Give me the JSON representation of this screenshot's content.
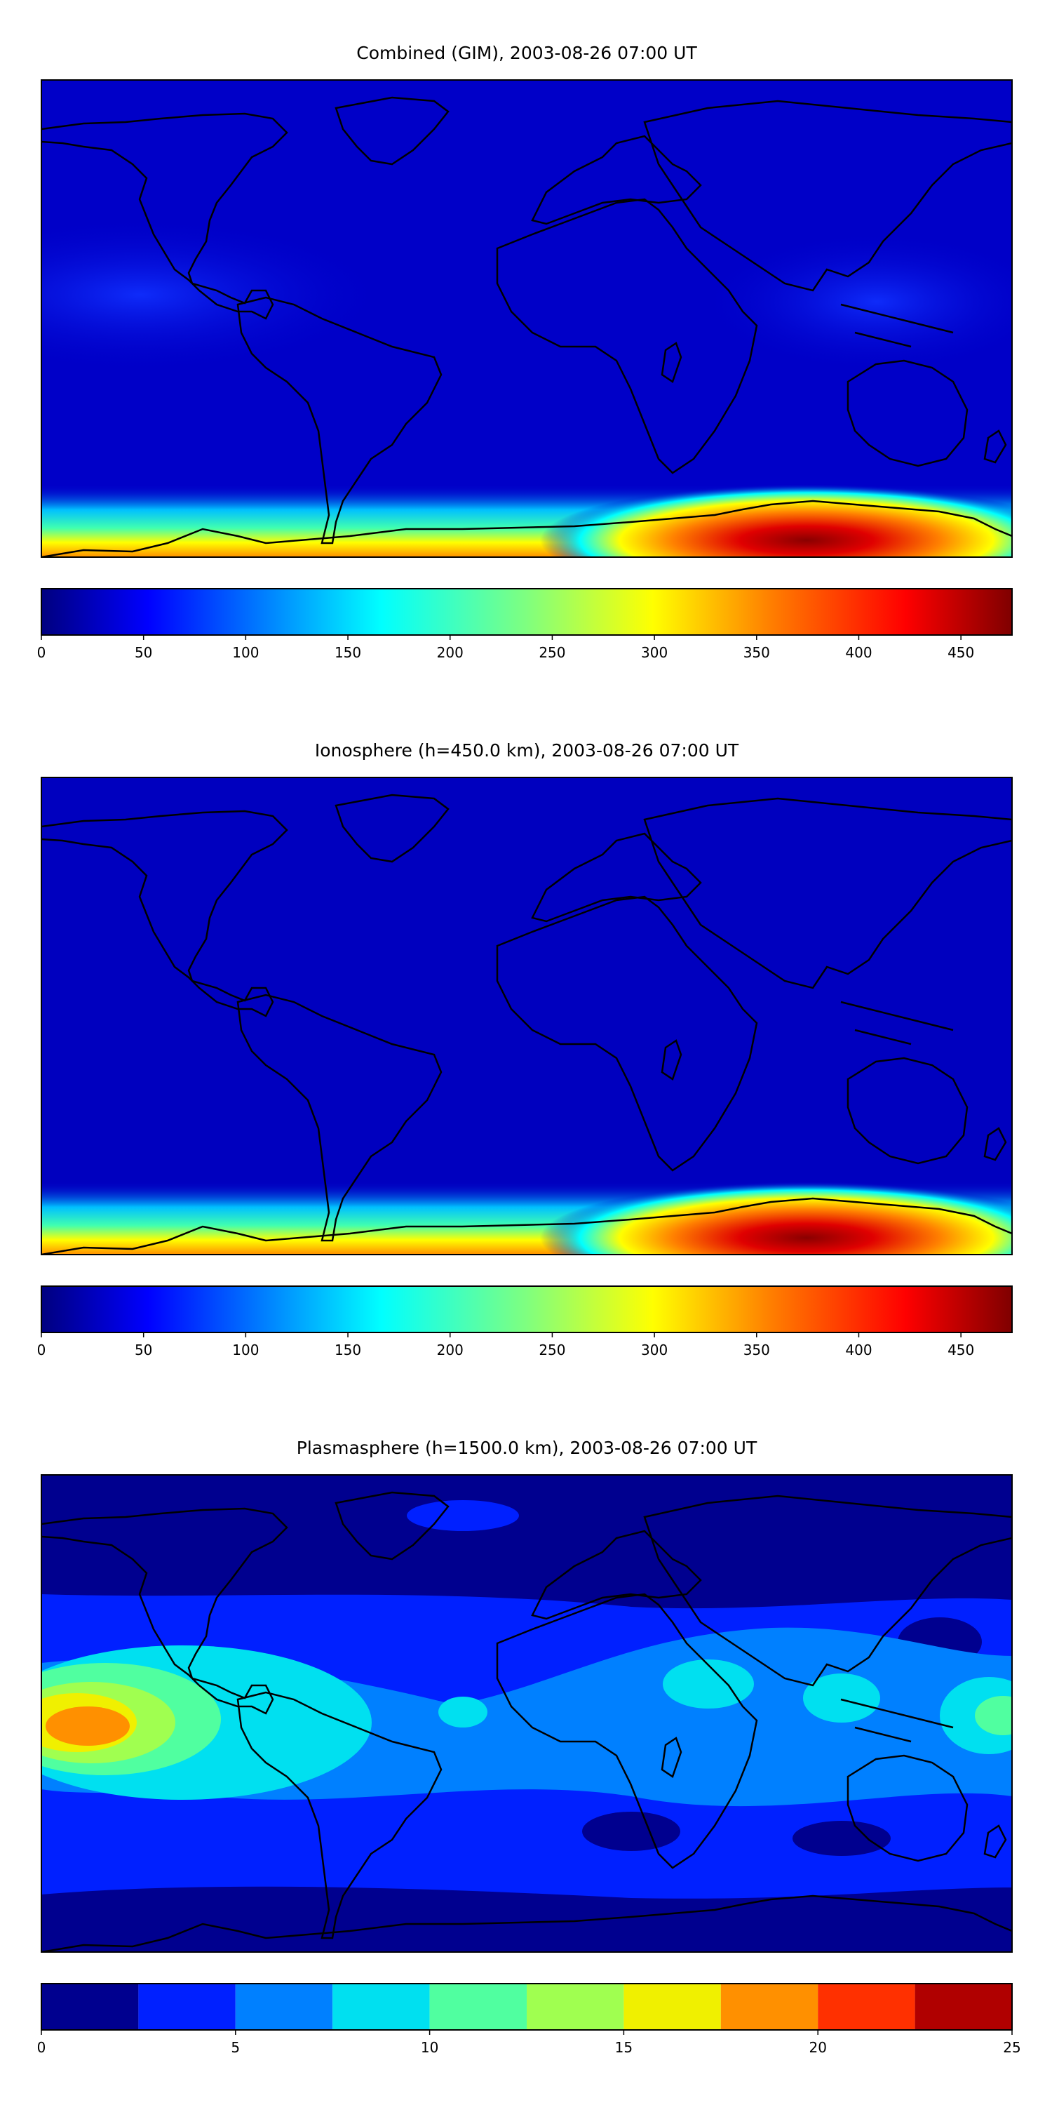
{
  "chart_data": [
    {
      "type": "heatmap",
      "title": "Combined (GIM), 2003-08-26 07:00 UT",
      "colormap": "jet",
      "colorbar": {
        "range": [
          0,
          475
        ],
        "ticks": [
          "0",
          "50",
          "100",
          "150",
          "200",
          "250",
          "300",
          "350",
          "400",
          "450"
        ],
        "tick_values": [
          0,
          50,
          100,
          150,
          200,
          250,
          300,
          350,
          400,
          450
        ]
      },
      "background_value": 45,
      "features": [
        {
          "name": "southern-polar-band",
          "value_peak": 470,
          "region": "south-edge"
        },
        {
          "name": "equatorial-enhancement",
          "value_peak": 65,
          "region": "equator"
        }
      ],
      "grid": false
    },
    {
      "type": "heatmap",
      "title": "Ionosphere  (h=450.0 km), 2003-08-26 07:00 UT",
      "colormap": "jet",
      "colorbar": {
        "range": [
          0,
          475
        ],
        "ticks": [
          "0",
          "50",
          "100",
          "150",
          "200",
          "250",
          "300",
          "350",
          "400",
          "450"
        ],
        "tick_values": [
          0,
          50,
          100,
          150,
          200,
          250,
          300,
          350,
          400,
          450
        ]
      },
      "background_value": 35,
      "features": [
        {
          "name": "southern-polar-band",
          "value_peak": 475,
          "region": "south-edge"
        }
      ],
      "grid": false
    },
    {
      "type": "heatmap",
      "title": "Plasmasphere (h=1500.0 km), 2003-08-26 07:00 UT",
      "colormap": "jet",
      "levels": [
        0,
        2.5,
        5,
        7.5,
        10,
        12.5,
        15,
        17.5,
        20,
        22.5,
        25
      ],
      "colorbar": {
        "range": [
          0,
          25
        ],
        "ticks": [
          "0",
          "5",
          "10",
          "15",
          "20",
          "25"
        ],
        "tick_values": [
          0,
          5,
          10,
          15,
          20,
          25
        ]
      },
      "peak_value": 19,
      "grid": false
    }
  ],
  "colors": {
    "jet_stops": [
      "#00007f",
      "#0000ff",
      "#007fff",
      "#00ffff",
      "#7fff7f",
      "#ffff00",
      "#ff7f00",
      "#ff0000",
      "#7f0000"
    ],
    "discrete_levels": [
      "#00008f",
      "#0020ff",
      "#0080ff",
      "#00e0f0",
      "#50ffa0",
      "#a0ff50",
      "#f0f000",
      "#ff9000",
      "#ff3000",
      "#b00000"
    ],
    "coastline": "#000000"
  }
}
